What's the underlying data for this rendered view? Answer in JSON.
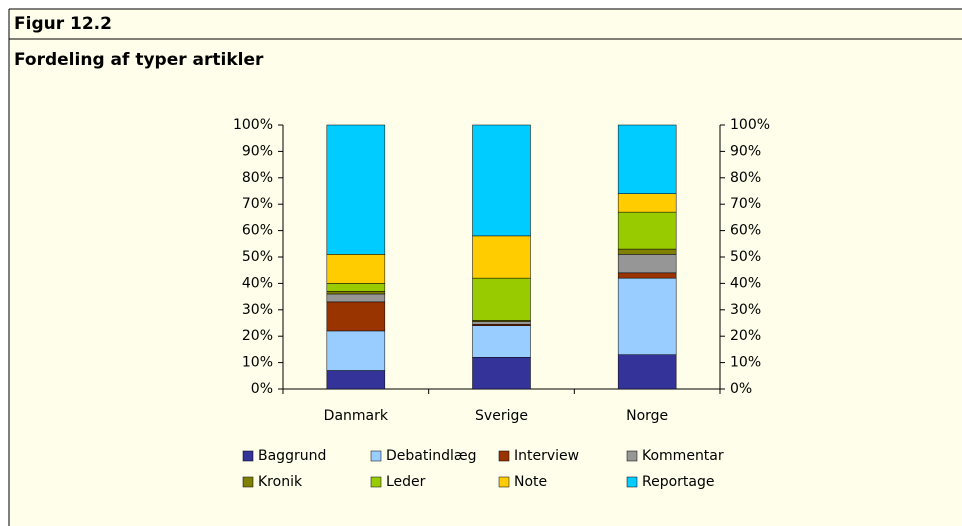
{
  "figure_label": "Figur 12.2",
  "chart_data": {
    "type": "bar",
    "stacked": true,
    "title": "Fordeling af typer artikler",
    "categories": [
      "Danmark",
      "Sverige",
      "Norge"
    ],
    "series": [
      {
        "name": "Baggrund",
        "color": "#333399",
        "values": [
          7,
          12,
          13
        ]
      },
      {
        "name": "Debatindlæg",
        "color": "#99ccff",
        "values": [
          15,
          12,
          29
        ]
      },
      {
        "name": "Interview",
        "color": "#993300",
        "values": [
          11,
          0.5,
          2
        ]
      },
      {
        "name": "Kommentar",
        "color": "#969696",
        "values": [
          3,
          1,
          7
        ]
      },
      {
        "name": "Kronik",
        "color": "#808000",
        "values": [
          1,
          0.5,
          2
        ]
      },
      {
        "name": "Leder",
        "color": "#99cc00",
        "values": [
          3,
          16,
          14
        ]
      },
      {
        "name": "Note",
        "color": "#ffcc00",
        "values": [
          11,
          16,
          7
        ]
      },
      {
        "name": "Reportage",
        "color": "#00ccff",
        "values": [
          49,
          42,
          26
        ]
      }
    ],
    "ylim": [
      0,
      100
    ],
    "yticks": [
      {
        "value": 0,
        "label": "0%"
      },
      {
        "value": 10,
        "label": "10%"
      },
      {
        "value": 20,
        "label": "20%"
      },
      {
        "value": 30,
        "label": "30%"
      },
      {
        "value": 40,
        "label": "40%"
      },
      {
        "value": 50,
        "label": "50%"
      },
      {
        "value": 60,
        "label": "60%"
      },
      {
        "value": 70,
        "label": "70%"
      },
      {
        "value": 80,
        "label": "80%"
      },
      {
        "value": 90,
        "label": "90%"
      },
      {
        "value": 100,
        "label": "100%"
      }
    ],
    "secondary_axis": true,
    "grid": false,
    "legend": "bottom"
  }
}
